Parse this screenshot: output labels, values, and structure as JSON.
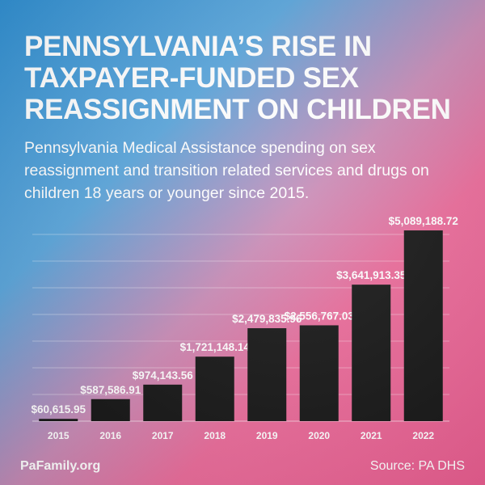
{
  "title": "PENNSYLVANIA’S RISE IN TAXPAYER-FUNDED SEX REASSIGNMENT ON CHILDREN",
  "subtitle": "Pennsylvania Medical Assistance spending on sex reassignment and transition related services and drugs on children 18 years or younger since 2015.",
  "footer": {
    "brand": "PaFamily.org",
    "source": "Source: PA DHS"
  },
  "colors": {
    "bar": "#141414",
    "text": "#ffffff",
    "grid": "#ffffff"
  },
  "chart_data": {
    "type": "bar",
    "categories": [
      "2015",
      "2016",
      "2017",
      "2018",
      "2019",
      "2020",
      "2021",
      "2022"
    ],
    "values": [
      60615.95,
      587586.91,
      974143.56,
      1721148.14,
      2479835.96,
      2556767.03,
      3641913.35,
      5089188.72
    ],
    "value_labels": [
      "$60,615.95",
      "$587,586.91",
      "$974,143.56",
      "$1,721,148.14",
      "$2,479,835.96",
      "$2,556,767.03",
      "$3,641,913.35",
      "$5,089,188.72"
    ],
    "ylim": [
      0,
      5500000
    ],
    "grid": true,
    "xlabel": "",
    "ylabel": ""
  }
}
